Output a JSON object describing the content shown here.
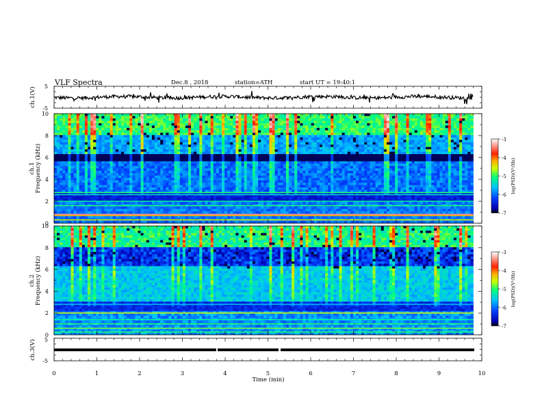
{
  "header": {
    "title": "VLF Spectra",
    "date": "Dec.8 , 2018",
    "station": "station=ATH",
    "start": "start UT = 19:40:1"
  },
  "chart_data": [
    {
      "type": "line",
      "ylabel": "ch.1(V)",
      "ylim": [
        -5,
        5
      ],
      "yticks": [
        "5",
        "-5"
      ],
      "xlim": [
        0,
        10
      ],
      "series": [
        {
          "values_note": "",
          "level": 0
        }
      ]
    },
    {
      "type": "heatmap",
      "ylabel": "ch.1\nFrequency (kHz)",
      "ylim": [
        0,
        10
      ],
      "yticks": [
        "0",
        "2",
        "4",
        "6",
        "8",
        "10"
      ],
      "xlim": [
        0,
        9.8
      ],
      "colorbar": {
        "label": "log(PSD)(V²/Hz)",
        "range": [
          -7,
          -3
        ],
        "ticks": [
          "-3",
          "-4",
          "-5",
          "-6",
          "-7"
        ],
        "colors": [
          "#000000",
          "#0000b0",
          "#0050ff",
          "#00c8ff",
          "#00ff80",
          "#c8ff00",
          "#ffb000",
          "#ff2000",
          "#ffffff"
        ]
      }
    },
    {
      "type": "heatmap",
      "ylabel": "ch.2\nFrequency (kHz)",
      "ylim": [
        0,
        10
      ],
      "yticks": [
        "0",
        "2",
        "4",
        "6",
        "8",
        "10"
      ],
      "xlim": [
        0,
        9.8
      ],
      "colorbar": {
        "label": "log(PSD)(V²/Hz)",
        "range": [
          -7,
          -3
        ],
        "ticks": [
          "-3",
          "-4",
          "-5",
          "-6",
          "-7"
        ],
        "colors": [
          "#000000",
          "#0000b0",
          "#0050ff",
          "#00c8ff",
          "#00ff80",
          "#c8ff00",
          "#ffb000",
          "#ff2000",
          "#ffffff"
        ]
      }
    },
    {
      "type": "line",
      "ylabel": "ch.3(V)",
      "ylim": [
        -5,
        5
      ],
      "yticks": [
        "5",
        "-5"
      ],
      "xlim": [
        0,
        10
      ],
      "xlabel": "Time (min)",
      "xticks": [
        "0",
        "1",
        "2",
        "3",
        "4",
        "5",
        "6",
        "7",
        "8",
        "9",
        "10"
      ],
      "series": [
        {
          "level": 0
        }
      ]
    }
  ],
  "labels": {
    "ch1_v": "ch.1(V)",
    "ch1_freq_a": "ch.1",
    "ch1_freq_b": "Frequency (kHz)",
    "ch2_freq_a": "ch.2",
    "ch2_freq_b": "Frequency (kHz)",
    "ch3_v": "ch.3(V)",
    "xlabel": "Time (min)",
    "cbar_label": "log(PSD)(V²/Hz)"
  }
}
